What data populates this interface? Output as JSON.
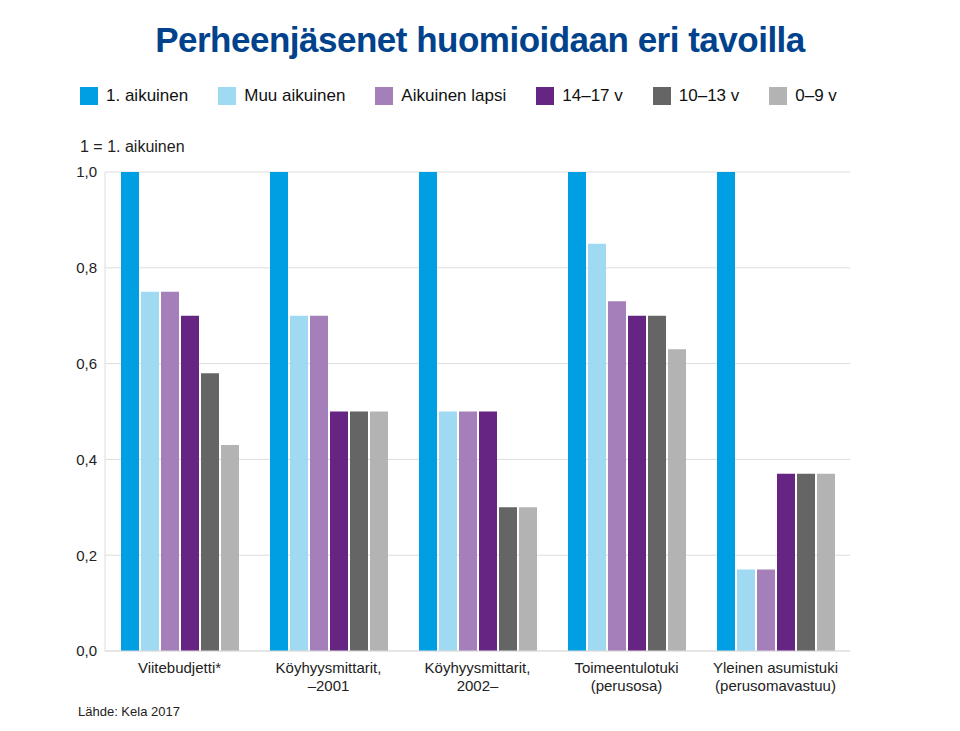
{
  "chart_data": {
    "type": "bar",
    "title": "Perheenjäsenet huomioidaan eri tavoilla",
    "ylabel": "1 = 1. aikuinen",
    "source": "Lähde: Kela 2017",
    "categories": [
      "Viitebudjetti*",
      "Köyhyysmittarit,\n–2001",
      "Köyhyysmittarit,\n2002–",
      "Toimeentulotuki\n(perusosa)",
      "Yleinen asumistuki\n(perusomavastuu)"
    ],
    "series": [
      {
        "name": "1. aikuinen",
        "color": "#009fe3",
        "values": [
          1.0,
          1.0,
          1.0,
          1.0,
          1.0
        ]
      },
      {
        "name": "Muu aikuinen",
        "color": "#9fd9f2",
        "values": [
          0.75,
          0.7,
          0.5,
          0.85,
          0.17
        ]
      },
      {
        "name": "Aikuinen lapsi",
        "color": "#a47fba",
        "values": [
          0.75,
          0.7,
          0.5,
          0.73,
          0.17
        ]
      },
      {
        "name": "14–17 v",
        "color": "#662483",
        "values": [
          0.7,
          0.5,
          0.5,
          0.7,
          0.37
        ]
      },
      {
        "name": "10–13 v",
        "color": "#656565",
        "values": [
          0.58,
          0.5,
          0.3,
          0.7,
          0.37
        ]
      },
      {
        "name": "0–9 v",
        "color": "#b3b3b3",
        "values": [
          0.43,
          0.5,
          0.3,
          0.63,
          0.37
        ]
      }
    ],
    "ylim": [
      0,
      1
    ],
    "yticks": [
      {
        "value": 0,
        "label": "0,0"
      },
      {
        "value": 0.2,
        "label": "0,2"
      },
      {
        "value": 0.4,
        "label": "0,4"
      },
      {
        "value": 0.6,
        "label": "0,6"
      },
      {
        "value": 0.8,
        "label": "0,8"
      },
      {
        "value": 1,
        "label": "1,0"
      }
    ],
    "grid": true,
    "legend": "top"
  }
}
